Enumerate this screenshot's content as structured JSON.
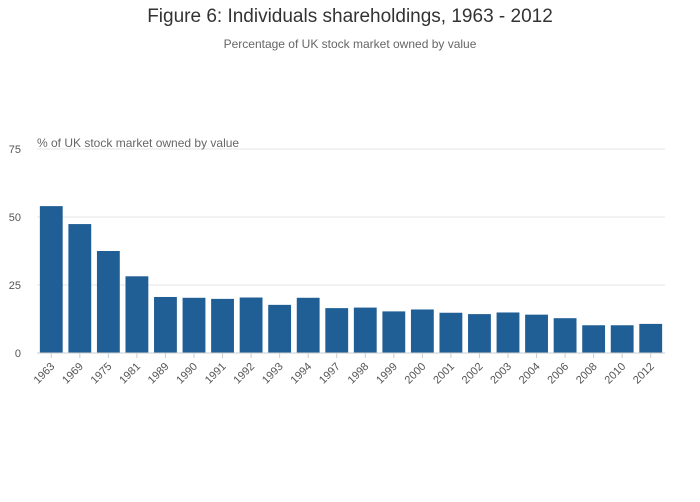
{
  "chart_data": {
    "type": "bar",
    "title": "Figure 6: Individuals shareholdings, 1963 - 2012",
    "subtitle": "Percentage of UK stock market owned by value",
    "xlabel": "",
    "ylabel": "% of UK stock market owned by value",
    "categories": [
      "1963",
      "1969",
      "1975",
      "1981",
      "1989",
      "1990",
      "1991",
      "1992",
      "1993",
      "1994",
      "1997",
      "1998",
      "1999",
      "2000",
      "2001",
      "2002",
      "2003",
      "2004",
      "2006",
      "2008",
      "2010",
      "2012"
    ],
    "values": [
      54,
      47.4,
      37.5,
      28.2,
      20.6,
      20.3,
      19.9,
      20.4,
      17.7,
      20.3,
      16.5,
      16.7,
      15.3,
      16.0,
      14.8,
      14.3,
      14.9,
      14.1,
      12.8,
      10.2,
      10.2,
      10.7
    ],
    "ylim": [
      0,
      75
    ],
    "yticks": [
      0,
      25,
      50,
      75
    ],
    "grid": true,
    "bar_color": "#205f96"
  }
}
